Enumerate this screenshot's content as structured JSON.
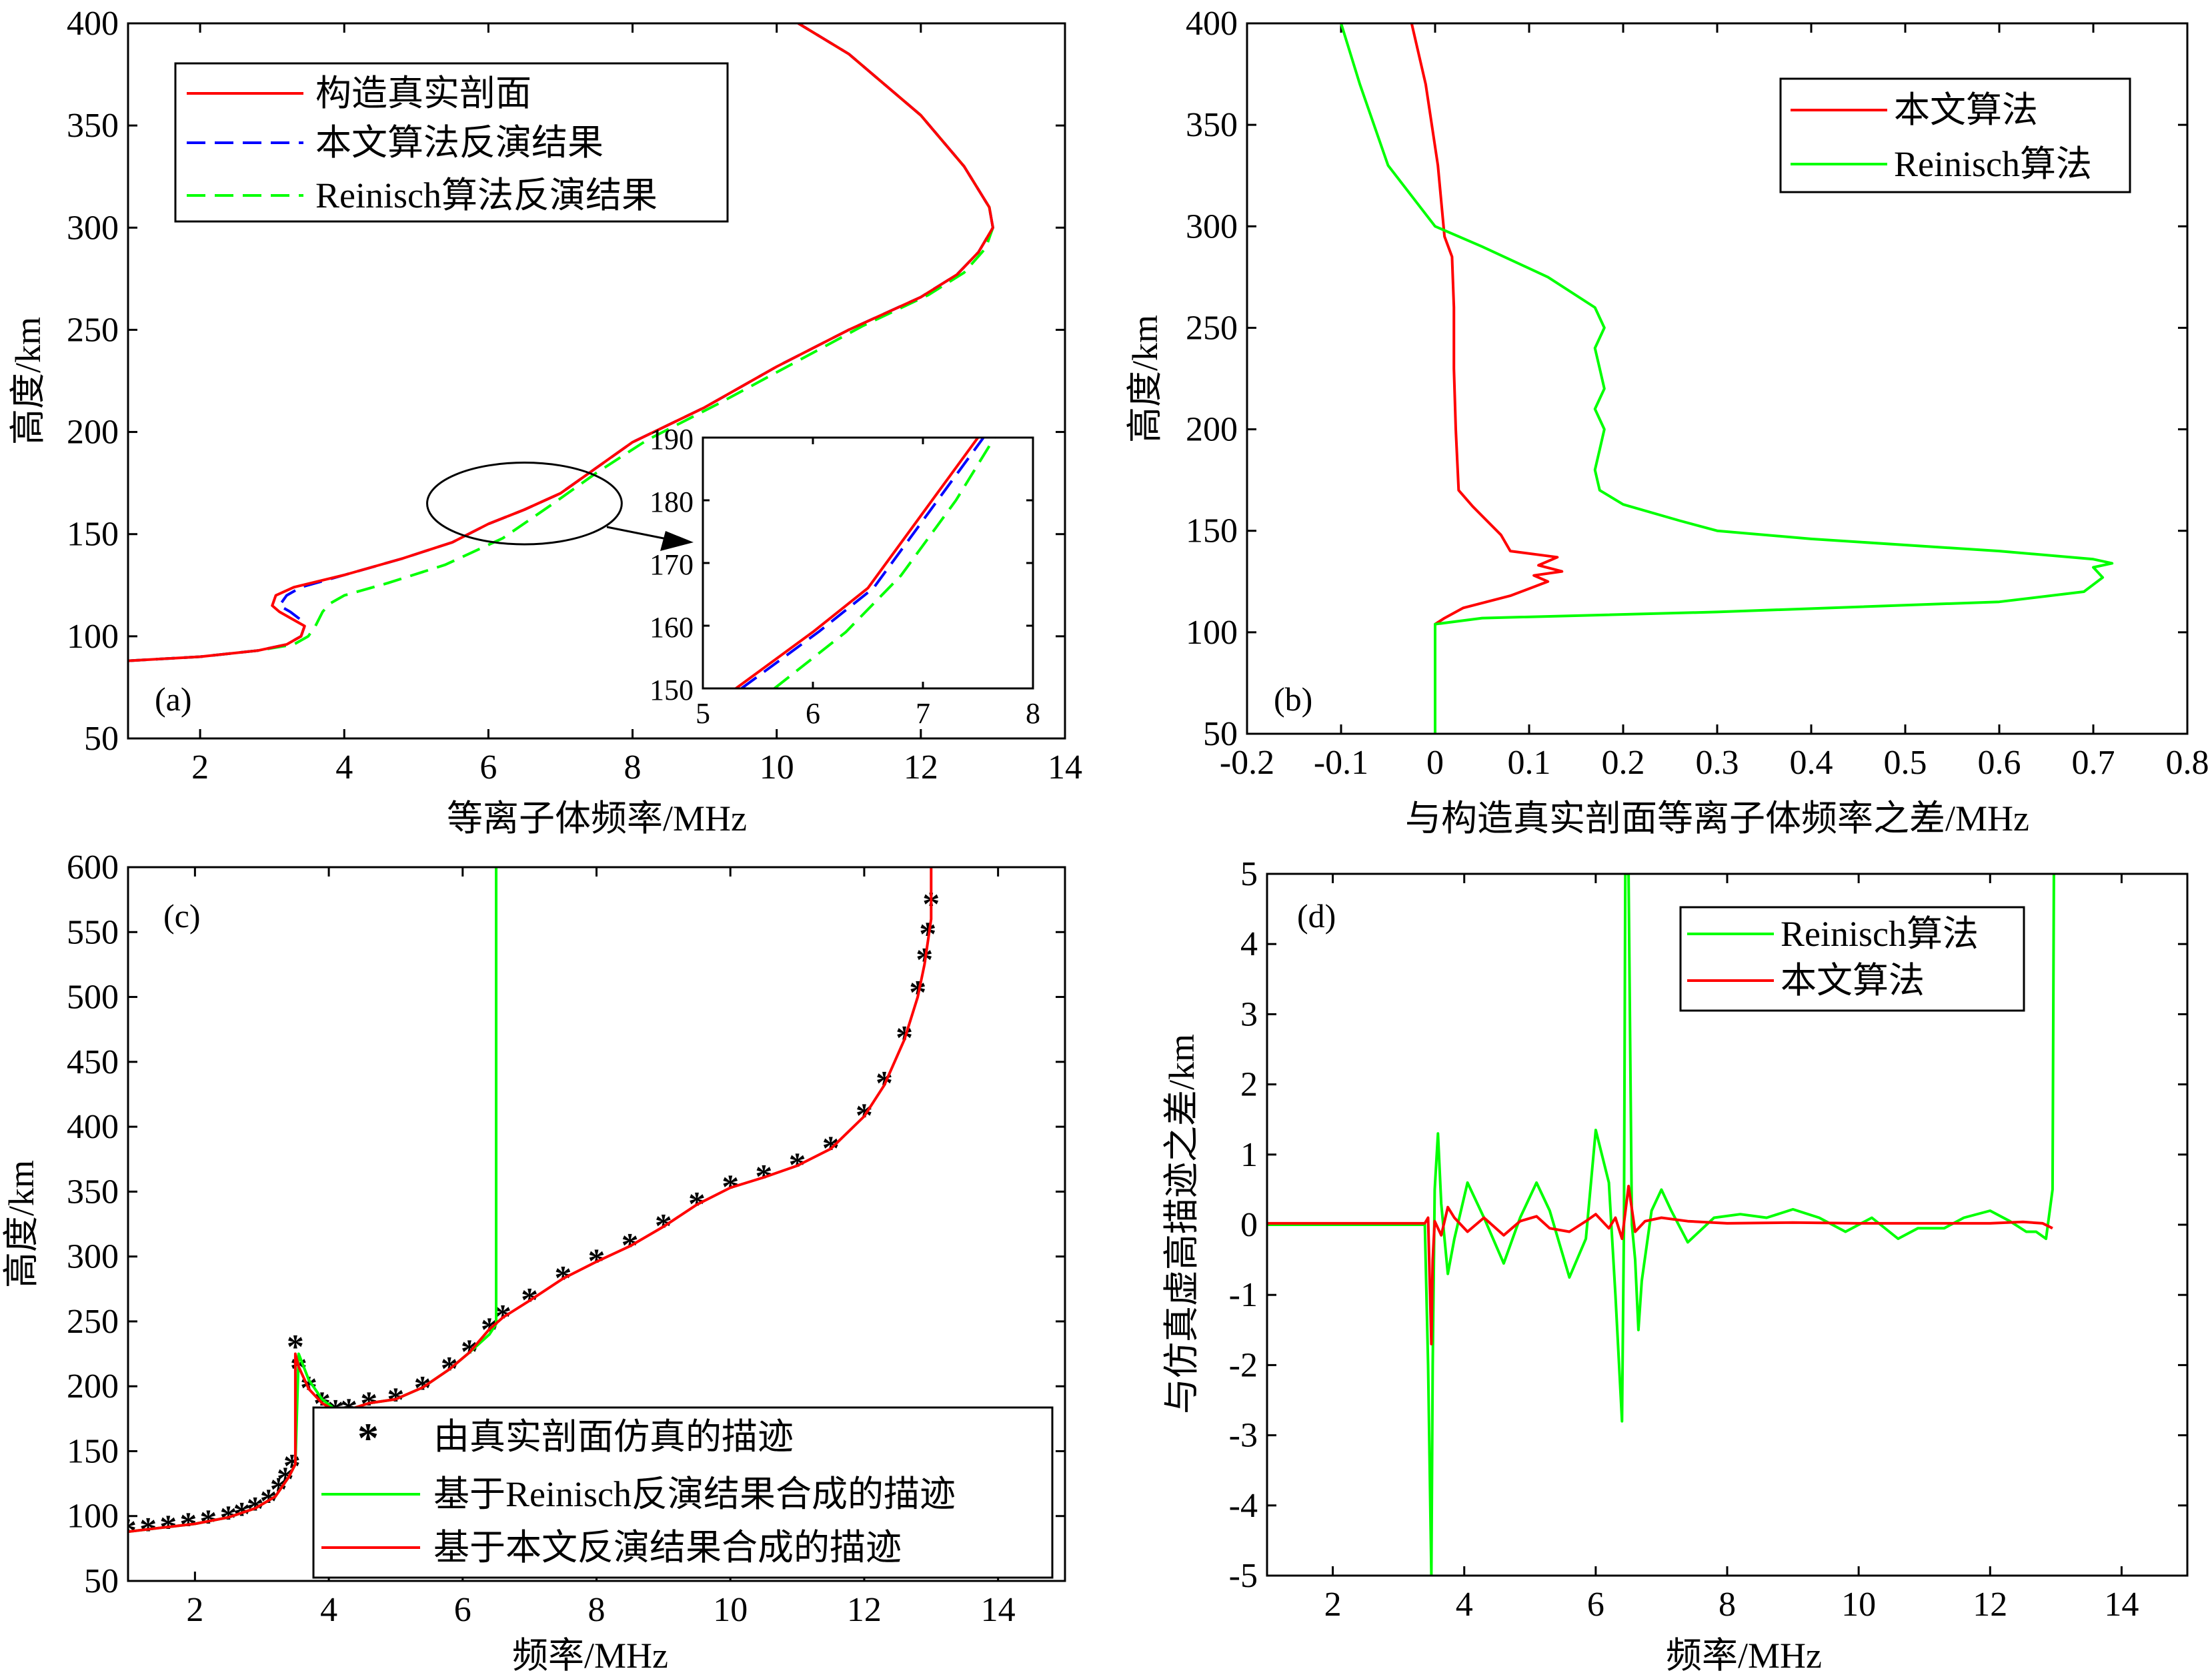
{
  "chart_data": [
    {
      "id": "a",
      "type": "line",
      "panel_label": "(a)",
      "xlabel": "等离子体频率/MHz",
      "ylabel": "高度/km",
      "xlim": [
        1,
        14
      ],
      "ylim": [
        50,
        400
      ],
      "xticks": [
        2,
        4,
        6,
        8,
        10,
        12,
        14
      ],
      "yticks": [
        50,
        100,
        150,
        200,
        250,
        300,
        350,
        400
      ],
      "legend": "top-left",
      "series": [
        {
          "name": "构造真实剖面",
          "color": "#ff0000",
          "dash": "solid",
          "x": [
            1.0,
            2.0,
            2.8,
            3.2,
            3.4,
            3.45,
            3.3,
            3.1,
            3.0,
            3.05,
            3.3,
            4.0,
            4.8,
            5.5,
            6.0,
            6.5,
            7.0,
            8.0,
            9.0,
            10.0,
            11.0,
            12.0,
            12.5,
            12.8,
            13.0,
            12.95,
            12.6,
            12.0,
            11.0,
            10.3
          ],
          "y": [
            88,
            90,
            93,
            96,
            100,
            105,
            108,
            112,
            115,
            120,
            124,
            130,
            138,
            146,
            155,
            162,
            170,
            195,
            212,
            232,
            250,
            266,
            277,
            288,
            300,
            310,
            330,
            355,
            385,
            400
          ]
        },
        {
          "name": "本文算法反演结果",
          "color": "#0000ff",
          "dash": "long",
          "x": [
            1.0,
            2.0,
            2.8,
            3.2,
            3.4,
            3.45,
            3.4,
            3.25,
            3.1,
            3.2,
            3.4,
            4.0,
            4.8,
            5.5,
            6.0,
            6.5,
            7.0,
            8.0,
            9.0,
            10.0,
            11.0,
            12.0,
            12.5,
            12.8,
            13.0,
            12.95,
            12.6,
            12.0,
            11.0,
            10.3
          ],
          "y": [
            88,
            90,
            93,
            96,
            100,
            105,
            108,
            112,
            115,
            120,
            124,
            130,
            138,
            146,
            155,
            162,
            170,
            195,
            212,
            232,
            250,
            266,
            277,
            288,
            300,
            310,
            330,
            355,
            385,
            400
          ]
        },
        {
          "name": "Reinisch算法反演结果",
          "color": "#00ff00",
          "dash": "long",
          "x": [
            1.0,
            2.0,
            2.8,
            3.3,
            3.5,
            3.6,
            3.7,
            3.8,
            4.0,
            4.6,
            5.4,
            6.2,
            6.9,
            7.5,
            8.2,
            9.2,
            10.2,
            11.2,
            12.1,
            12.6,
            12.9,
            13.0,
            12.95,
            12.6,
            12.0,
            11.0,
            10.3
          ],
          "y": [
            88,
            90,
            93,
            96,
            100,
            105,
            112,
            116,
            120,
            126,
            135,
            148,
            165,
            180,
            196,
            214,
            233,
            252,
            267,
            278,
            290,
            300,
            310,
            330,
            355,
            385,
            400
          ]
        }
      ],
      "inset": {
        "xlim": [
          5,
          8
        ],
        "ylim": [
          150,
          190
        ],
        "xticks": [
          5,
          6,
          7,
          8
        ],
        "yticks": [
          150,
          160,
          170,
          180,
          190
        ],
        "series": [
          {
            "name": "构造真实剖面",
            "color": "#ff0000",
            "x": [
              5.3,
              6.0,
              6.5,
              7.0,
              7.5
            ],
            "y": [
              150,
              159,
              166,
              178,
              190
            ]
          },
          {
            "name": "本文算法反演结果",
            "color": "#0000ff",
            "x": [
              5.35,
              6.05,
              6.55,
              7.05,
              7.55
            ],
            "y": [
              150,
              159,
              166,
              178,
              190
            ]
          },
          {
            "name": "Reinisch算法反演结果",
            "color": "#00ff00",
            "x": [
              5.65,
              6.3,
              6.8,
              7.3,
              7.65
            ],
            "y": [
              150,
              159,
              168,
              180,
              190
            ]
          }
        ]
      },
      "zoom_ellipse": {
        "center_x": 6.5,
        "center_y": 165,
        "rx": 1.35,
        "ry": 20
      }
    },
    {
      "id": "b",
      "type": "line",
      "panel_label": "(b)",
      "xlabel": "与构造真实剖面等离子体频率之差/MHz",
      "ylabel": "高度/km",
      "xlim": [
        -0.2,
        0.8
      ],
      "ylim": [
        50,
        400
      ],
      "xticks": [
        -0.2,
        -0.1,
        0,
        0.1,
        0.2,
        0.3,
        0.4,
        0.5,
        0.6,
        0.7,
        0.8
      ],
      "yticks": [
        50,
        100,
        150,
        200,
        250,
        300,
        350,
        400
      ],
      "legend": "top-right",
      "series": [
        {
          "name": "本文算法",
          "color": "#ff0000",
          "x": [
            0,
            0,
            0.01,
            0.03,
            0.08,
            0.12,
            0.105,
            0.135,
            0.11,
            0.13,
            0.08,
            0.07,
            0.04,
            0.025,
            0.022,
            0.02,
            0.02,
            0.018,
            0.01,
            0.003,
            -0.01,
            -0.025
          ],
          "y": [
            50,
            104,
            107,
            112,
            118,
            125,
            128,
            130,
            133,
            137,
            140,
            148,
            162,
            170,
            200,
            230,
            260,
            285,
            295,
            330,
            370,
            400
          ]
        },
        {
          "name": "Reinisch算法",
          "color": "#00ff00",
          "x": [
            0,
            0,
            0.05,
            0.3,
            0.6,
            0.69,
            0.71,
            0.7,
            0.72,
            0.7,
            0.6,
            0.4,
            0.3,
            0.26,
            0.2,
            0.175,
            0.17,
            0.175,
            0.18,
            0.17,
            0.18,
            0.175,
            0.17,
            0.18,
            0.17,
            0.12,
            0.05,
            0.0,
            -0.05,
            -0.08,
            -0.1
          ],
          "y": [
            50,
            104,
            107,
            110,
            115,
            120,
            127,
            132,
            134,
            136,
            140,
            146,
            150,
            155,
            163,
            170,
            180,
            190,
            200,
            210,
            220,
            230,
            240,
            250,
            260,
            275,
            290,
            300,
            330,
            370,
            400
          ]
        }
      ]
    },
    {
      "id": "c",
      "type": "line",
      "panel_label": "(c)",
      "xlabel": "频率/MHz",
      "ylabel": "高度/km",
      "xlim": [
        1,
        15
      ],
      "ylim": [
        50,
        600
      ],
      "xticks": [
        2,
        4,
        6,
        8,
        10,
        12,
        14
      ],
      "yticks": [
        50,
        100,
        150,
        200,
        250,
        300,
        350,
        400,
        450,
        500,
        550,
        600
      ],
      "legend": "bottom-center",
      "series": [
        {
          "name": "由真实剖面仿真的描迹",
          "color": "#000000",
          "marker": "*",
          "x": [
            1.0,
            1.3,
            1.6,
            1.9,
            2.2,
            2.5,
            2.7,
            2.9,
            3.1,
            3.25,
            3.35,
            3.45,
            3.5,
            3.55,
            3.7,
            3.9,
            4.1,
            4.3,
            4.6,
            5.0,
            5.4,
            5.8,
            6.1,
            6.4,
            6.6,
            7.0,
            7.5,
            8.0,
            8.5,
            9.0,
            9.5,
            10.0,
            10.5,
            11.0,
            11.5,
            12.0,
            12.3,
            12.6,
            12.8,
            12.9,
            12.95,
            13.0
          ],
          "y": [
            90,
            91,
            93,
            95,
            97,
            100,
            103,
            107,
            113,
            122,
            130,
            140,
            232,
            215,
            200,
            188,
            182,
            183,
            188,
            191,
            200,
            215,
            228,
            245,
            255,
            268,
            285,
            298,
            310,
            325,
            342,
            355,
            363,
            372,
            385,
            410,
            435,
            470,
            505,
            530,
            550,
            573
          ]
        },
        {
          "name": "基于Reinisch反演结果合成的描迹",
          "color": "#00ff00",
          "x": [
            1.0,
            1.5,
            2.0,
            2.5,
            2.9,
            3.2,
            3.4,
            3.5,
            3.55,
            3.7,
            3.9,
            4.1,
            4.3,
            4.6,
            5.0,
            5.4,
            5.8,
            6.1,
            6.4,
            6.5,
            6.5,
            6.5
          ],
          "y": [
            88,
            91,
            94,
            99,
            106,
            115,
            130,
            140,
            225,
            205,
            190,
            182,
            182,
            187,
            190,
            199,
            213,
            226,
            240,
            248,
            600,
            255
          ]
        },
        {
          "name": "基于本文反演结果合成的描迹",
          "color": "#ff0000",
          "x": [
            1.0,
            1.5,
            2.0,
            2.5,
            2.9,
            3.2,
            3.4,
            3.5,
            3.5,
            3.55,
            3.7,
            3.9,
            4.1,
            4.3,
            4.6,
            5.0,
            5.4,
            5.8,
            6.1,
            6.4,
            6.6,
            7.0,
            7.5,
            8.0,
            8.5,
            9.0,
            9.5,
            10.0,
            10.5,
            11.0,
            11.5,
            12.0,
            12.3,
            12.6,
            12.8,
            12.9,
            13.0,
            13.0
          ],
          "y": [
            88,
            91,
            94,
            99,
            106,
            115,
            130,
            140,
            225,
            215,
            198,
            187,
            181,
            182,
            187,
            190,
            199,
            213,
            226,
            244,
            253,
            266,
            283,
            296,
            308,
            323,
            340,
            353,
            361,
            370,
            383,
            408,
            432,
            467,
            500,
            525,
            560,
            600
          ]
        }
      ]
    },
    {
      "id": "d",
      "type": "line",
      "panel_label": "(d)",
      "xlabel": "频率/MHz",
      "ylabel": "与仿真虚高描迹之差/km",
      "xlim": [
        1,
        15
      ],
      "ylim": [
        -5,
        5
      ],
      "xticks": [
        2,
        4,
        6,
        8,
        10,
        12,
        14
      ],
      "yticks": [
        -5,
        -4,
        -3,
        -2,
        -1,
        0,
        1,
        2,
        3,
        4,
        5
      ],
      "legend": "top-left",
      "series": [
        {
          "name": "Reinisch算法",
          "color": "#00ff00",
          "x": [
            1.0,
            3.4,
            3.45,
            3.5,
            3.52,
            3.55,
            3.6,
            3.65,
            3.75,
            3.85,
            4.05,
            4.3,
            4.6,
            4.85,
            5.1,
            5.3,
            5.6,
            5.85,
            6.0,
            6.2,
            6.3,
            6.4,
            6.43,
            6.45,
            6.5,
            6.55,
            6.6,
            6.65,
            6.7,
            6.85,
            7.0,
            7.15,
            7.4,
            7.8,
            8.2,
            8.6,
            9.0,
            9.4,
            9.8,
            10.2,
            10.6,
            10.9,
            11.3,
            11.6,
            12.0,
            12.3,
            12.55,
            12.7,
            12.85,
            12.95,
            12.97
          ],
          "y": [
            0,
            0,
            -2,
            -5,
            -2,
            0.5,
            1.3,
            0.3,
            -0.7,
            -0.2,
            0.6,
            0.1,
            -0.55,
            0.1,
            0.6,
            0.2,
            -0.75,
            -0.2,
            1.35,
            0.6,
            -1.0,
            -2.8,
            0,
            5,
            5,
            0,
            -0.5,
            -1.5,
            -0.8,
            0.2,
            0.5,
            0.2,
            -0.25,
            0.1,
            0.15,
            0.1,
            0.22,
            0.1,
            -0.1,
            0.1,
            -0.2,
            -0.05,
            -0.05,
            0.1,
            0.2,
            0.05,
            -0.1,
            -0.1,
            -0.2,
            0.5,
            5
          ]
        },
        {
          "name": "本文算法",
          "color": "#ff0000",
          "x": [
            1.0,
            3.4,
            3.45,
            3.5,
            3.52,
            3.55,
            3.65,
            3.75,
            3.85,
            4.05,
            4.3,
            4.6,
            4.85,
            5.1,
            5.3,
            5.6,
            5.85,
            6.0,
            6.2,
            6.3,
            6.4,
            6.5,
            6.6,
            6.75,
            7.0,
            7.4,
            8.0,
            9.0,
            10.0,
            11.0,
            12.0,
            12.5,
            12.8,
            12.95
          ],
          "y": [
            0.02,
            0.02,
            0.1,
            -1.7,
            -0.5,
            0.05,
            -0.15,
            0.25,
            0.1,
            -0.1,
            0.1,
            -0.15,
            0.05,
            0.12,
            -0.05,
            -0.1,
            0.05,
            0.15,
            -0.05,
            0.1,
            -0.2,
            0.55,
            -0.1,
            0.05,
            0.1,
            0.05,
            0.02,
            0.03,
            0.02,
            0.02,
            0.02,
            0.04,
            0.02,
            -0.05
          ]
        }
      ]
    }
  ]
}
